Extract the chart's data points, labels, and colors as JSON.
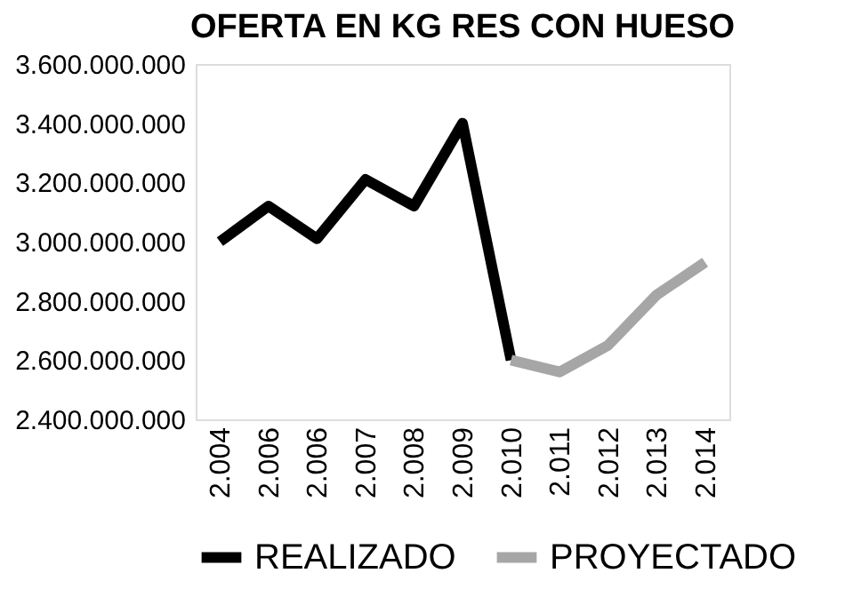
{
  "chart_data": {
    "type": "line",
    "title": "OFERTA EN KG RES CON HUESO",
    "categories": [
      "2.004",
      "2.006",
      "2.006",
      "2.007",
      "2.008",
      "2.009",
      "2.010",
      "2.011",
      "2.012",
      "2.013",
      "2.014"
    ],
    "series": [
      {
        "name": "REALIZADO",
        "color": "#000000",
        "values": [
          3000000000,
          3120000000,
          3010000000,
          3210000000,
          3120000000,
          3400000000,
          2600000000,
          null,
          null,
          null,
          null
        ]
      },
      {
        "name": "PROYECTADO",
        "color": "#a6a6a6",
        "values": [
          null,
          null,
          null,
          null,
          null,
          null,
          2600000000,
          2560000000,
          2650000000,
          2820000000,
          2930000000
        ]
      }
    ],
    "ylim": [
      2400000000,
      3600000000
    ],
    "yticks": [
      {
        "value": 2400000000,
        "label": "2.400.000.000"
      },
      {
        "value": 2600000000,
        "label": "2.600.000.000"
      },
      {
        "value": 2800000000,
        "label": "2.800.000.000"
      },
      {
        "value": 3000000000,
        "label": "3.000.000.000"
      },
      {
        "value": 3200000000,
        "label": "3.200.000.000"
      },
      {
        "value": 3400000000,
        "label": "3.400.000.000"
      },
      {
        "value": 3600000000,
        "label": "3.600.000.000"
      }
    ],
    "grid": false,
    "legend": "bottom",
    "marker": "none",
    "line_style": "solid"
  }
}
